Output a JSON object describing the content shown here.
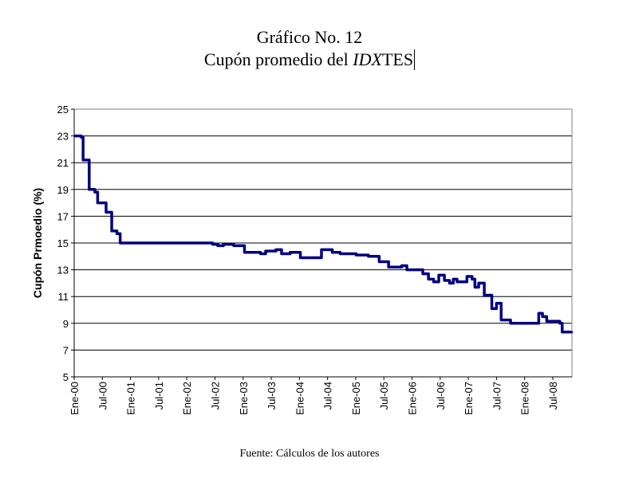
{
  "header": {
    "line1": "Gráfico No. 12",
    "line2_prefix": "Cupón promedio del ",
    "line2_italic": "IDX",
    "line2_suffix": "TES"
  },
  "source": "Fuente: Cálculos de los autores",
  "chart_data": {
    "type": "line",
    "title": "Cupón promedio del IDXTES",
    "xlabel": "",
    "ylabel": "Cupón Prmoedio (%)",
    "ylim": [
      5,
      25
    ],
    "yticks": [
      "5",
      "7",
      "9",
      "11",
      "13",
      "15",
      "17",
      "19",
      "21",
      "23",
      "25"
    ],
    "xticks": [
      "Ene-00",
      "Jul-00",
      "Ene-01",
      "Jul-01",
      "Ene-02",
      "Jul-02",
      "Ene-03",
      "Jul-03",
      "Ene-04",
      "Jul-04",
      "Ene-05",
      "Jul-05",
      "Ene-06",
      "Jul-06",
      "Ene-07",
      "Jul-07",
      "Ene-08",
      "Jul-08"
    ],
    "x_unit": "months since Ene-00",
    "xlim": [
      0,
      106
    ],
    "grid": true,
    "line_color": "#000080",
    "series": [
      {
        "name": "Cupón promedio",
        "step": true,
        "points": [
          [
            0,
            23.0
          ],
          [
            1.5,
            22.9
          ],
          [
            1.9,
            21.2
          ],
          [
            3.2,
            19.0
          ],
          [
            4.4,
            18.8
          ],
          [
            5,
            18.0
          ],
          [
            6.8,
            17.3
          ],
          [
            8,
            15.9
          ],
          [
            9.1,
            15.7
          ],
          [
            9.8,
            15.0
          ],
          [
            29.5,
            14.9
          ],
          [
            30.6,
            14.8
          ],
          [
            31.8,
            14.9
          ],
          [
            34,
            14.8
          ],
          [
            36.3,
            14.3
          ],
          [
            39.7,
            14.2
          ],
          [
            40.8,
            14.4
          ],
          [
            43,
            14.5
          ],
          [
            44.2,
            14.2
          ],
          [
            46,
            14.3
          ],
          [
            48.2,
            13.9
          ],
          [
            52.7,
            14.5
          ],
          [
            55,
            14.3
          ],
          [
            56.7,
            14.2
          ],
          [
            60.1,
            14.1
          ],
          [
            62.7,
            14.0
          ],
          [
            65,
            13.6
          ],
          [
            67,
            13.2
          ],
          [
            69.8,
            13.3
          ],
          [
            70.9,
            13.0
          ],
          [
            74.3,
            12.7
          ],
          [
            75.5,
            12.3
          ],
          [
            76.6,
            12.1
          ],
          [
            77.7,
            12.6
          ],
          [
            78.9,
            12.2
          ],
          [
            80,
            12.0
          ],
          [
            80.8,
            12.3
          ],
          [
            81.6,
            12.1
          ],
          [
            83.7,
            12.5
          ],
          [
            84.8,
            12.3
          ],
          [
            85.4,
            11.7
          ],
          [
            86.2,
            12.0
          ],
          [
            87.4,
            11.1
          ],
          [
            89,
            10.1
          ],
          [
            90,
            10.5
          ],
          [
            91,
            9.25
          ],
          [
            93,
            9.0
          ],
          [
            99,
            9.75
          ],
          [
            99.8,
            9.5
          ],
          [
            100.7,
            9.15
          ],
          [
            103.5,
            9.0
          ],
          [
            104,
            8.35
          ],
          [
            106,
            8.4
          ]
        ]
      }
    ]
  }
}
